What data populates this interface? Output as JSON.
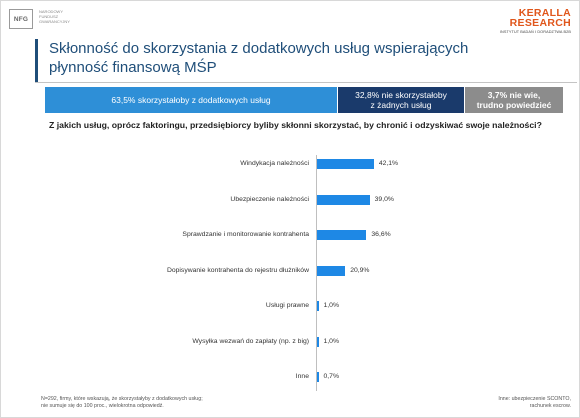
{
  "header": {
    "nfg_logo": "NFG",
    "nfg_name": "NARODOWY FUNDUSZ GWARANCYJNY",
    "kr_line1": "KERALLA",
    "kr_line2": "RESEARCH",
    "kr_tagline": "INSTYTUT BADAŃ I DORADZTWA B2B"
  },
  "title": "Skłonność do skorzystania z dodatkowych usług wspierających płynność finansową MŚP",
  "summary": {
    "seg1": "63,5% skorzystałoby z dodatkowych usług",
    "seg2_line1": "32,8% nie skorzystałoby",
    "seg2_line2": "z żadnych usług",
    "seg3_line1": "3,7% nie wie,",
    "seg3_line2": "trudno powiedzieć",
    "colors": {
      "seg1": "#2e8fd7",
      "seg2": "#1a3a6b",
      "seg3": "#8c8c8c"
    }
  },
  "question": "Z jakich usług, oprócz faktoringu, przedsiębiorcy byliby skłonni skorzystać, by chronić i odzyskiwać swoje należności?",
  "chart_data": {
    "type": "bar",
    "orientation": "horizontal",
    "categories": [
      "Windykacja należności",
      "Ubezpieczenie należności",
      "Sprawdzanie i monitorowanie kontrahenta",
      "Dopisywanie kontrahenta do rejestru dłużników",
      "Usługi prawne",
      "Wysyłka wezwań do zapłaty (np. z big)",
      "Inne"
    ],
    "values": [
      42.1,
      39.0,
      36.6,
      20.9,
      1.0,
      1.0,
      0.7
    ],
    "value_labels": [
      "42,1%",
      "39,0%",
      "36,6%",
      "20,9%",
      "1,0%",
      "1,0%",
      "0,7%"
    ],
    "bar_color": "#1e88e5",
    "xlim": [
      0,
      100
    ],
    "grid": false,
    "legend": "none"
  },
  "footnotes": {
    "left_line1": "N=292, firmy, które wskazują, że skorzystałyby z dodatkowych usług;",
    "left_line2": "nie sumuje się do 100 proc., wielokrotna odpowiedź.",
    "right_line1": "Inne: ubezpieczenie SCONTO,",
    "right_line2": "rachunek escrow."
  }
}
